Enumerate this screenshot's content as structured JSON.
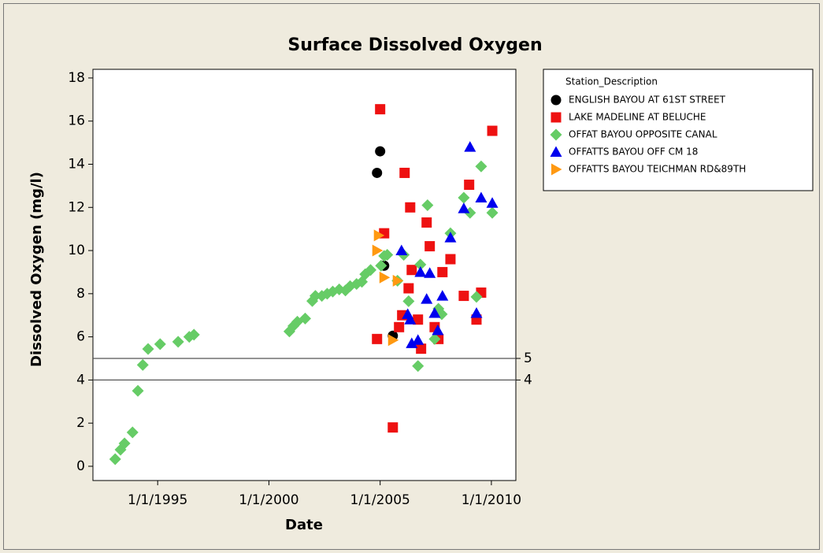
{
  "chart_data": {
    "type": "scatter",
    "title": "Surface Dissolved Oxygen",
    "x_label": "Date",
    "y_label": "Dissolved Oxygen (mg/l)",
    "legend_title": "Station_Description",
    "legend_position": "right",
    "xlim": [
      1992.09,
      2011.1
    ],
    "ylim": [
      -0.66,
      18.4
    ],
    "xticks": [
      {
        "value": 1995,
        "label": "1/1/1995"
      },
      {
        "value": 2000,
        "label": "1/1/2000"
      },
      {
        "value": 2005,
        "label": "1/1/2005"
      },
      {
        "value": 2010,
        "label": "1/1/2010"
      }
    ],
    "yticks": [
      0,
      2,
      4,
      6,
      8,
      10,
      12,
      14,
      16,
      18
    ],
    "hlines": [
      5,
      4
    ],
    "series": [
      {
        "name": "ENGLISH BAYOU AT 61ST STREET",
        "color": "#000000",
        "marker": "circle",
        "x": [
          2004.86,
          2005.0,
          2005.18,
          2005.57
        ],
        "values": [
          13.6,
          14.6,
          9.3,
          6.05
        ]
      },
      {
        "name": "LAKE MADELINE AT BELUCHE",
        "color": "#ee1111",
        "marker": "square",
        "x": [
          2004.86,
          2005.0,
          2005.18,
          2005.57,
          2005.85,
          2005.99,
          2006.1,
          2006.28,
          2006.35,
          2006.42,
          2006.7,
          2006.84,
          2007.09,
          2007.23,
          2007.45,
          2007.62,
          2007.8,
          2008.16,
          2008.76,
          2009.0,
          2009.33,
          2009.54,
          2010.04
        ],
        "values": [
          5.9,
          16.55,
          10.8,
          1.8,
          6.45,
          7.0,
          13.6,
          8.25,
          12.0,
          9.1,
          6.8,
          5.45,
          11.3,
          10.2,
          6.45,
          5.9,
          9.0,
          9.6,
          7.9,
          13.05,
          6.8,
          8.05,
          15.55
        ]
      },
      {
        "name": "OFFAT BAYOU OPPOSITE CANAL",
        "color": "#66cc66",
        "marker": "diamond",
        "x": [
          1993.09,
          1993.33,
          1993.51,
          1993.87,
          1994.11,
          1994.33,
          1994.57,
          1995.11,
          1995.92,
          1996.42,
          1996.63,
          2000.92,
          2001.1,
          2001.28,
          2001.63,
          2001.95,
          2002.09,
          2002.38,
          2002.62,
          2002.87,
          2003.16,
          2003.44,
          2003.65,
          2003.94,
          2004.18,
          2004.33,
          2004.57,
          2005.04,
          2005.18,
          2005.32,
          2005.78,
          2006.06,
          2006.28,
          2006.7,
          2006.81,
          2007.13,
          2007.45,
          2007.62,
          2007.77,
          2008.16,
          2008.76,
          2009.04,
          2009.33,
          2009.54,
          2010.04
        ],
        "values": [
          0.33,
          0.77,
          1.06,
          1.57,
          3.5,
          4.7,
          5.44,
          5.66,
          5.77,
          6.0,
          6.1,
          6.25,
          6.5,
          6.7,
          6.85,
          7.66,
          7.9,
          7.9,
          8.0,
          8.1,
          8.2,
          8.15,
          8.35,
          8.45,
          8.55,
          8.9,
          9.1,
          9.3,
          9.75,
          9.8,
          8.6,
          9.8,
          7.65,
          4.65,
          9.35,
          12.1,
          5.9,
          7.3,
          7.05,
          10.8,
          12.45,
          11.75,
          7.85,
          13.9,
          11.75
        ]
      },
      {
        "name": "OFFATTS BAYOU OFF CM 18",
        "color": "#0000ee",
        "marker": "triangle-up",
        "x": [
          2005.96,
          2006.24,
          2006.35,
          2006.42,
          2006.7,
          2006.81,
          2007.09,
          2007.23,
          2007.45,
          2007.59,
          2007.8,
          2008.16,
          2008.76,
          2009.04,
          2009.33,
          2009.54,
          2010.04
        ],
        "values": [
          10.0,
          7.05,
          6.8,
          5.7,
          5.85,
          9.0,
          7.75,
          8.95,
          7.1,
          6.3,
          7.9,
          10.6,
          11.95,
          14.8,
          7.1,
          12.45,
          12.2
        ]
      },
      {
        "name": "OFFATTS BAYOU TEICHMAN RD&89TH",
        "color": "#ff9911",
        "marker": "triangle-right",
        "x": [
          2004.93,
          2004.86,
          2005.18,
          2005.78,
          2005.57
        ],
        "values": [
          10.7,
          10.0,
          8.75,
          8.6,
          5.85
        ]
      }
    ]
  }
}
